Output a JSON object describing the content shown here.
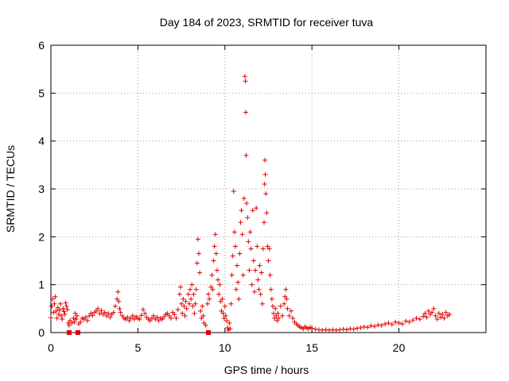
{
  "chart_data": {
    "type": "scatter",
    "title": "Day 184 of 2023, SRMTID for receiver tuva",
    "xlabel": "GPS time / hours",
    "ylabel": "SRMTID / TECUs",
    "xlim": [
      0,
      25
    ],
    "ylim": [
      0,
      6
    ],
    "x_ticks": [
      0,
      5,
      10,
      15,
      20
    ],
    "y_ticks": [
      0,
      1,
      2,
      3,
      4,
      5,
      6
    ],
    "x_tick_labels": [
      "0",
      "5",
      "10",
      "15",
      "20"
    ],
    "y_tick_labels": [
      "0",
      "1",
      "2",
      "3",
      "4",
      "5",
      "6"
    ],
    "grid": true,
    "marker": "+",
    "color": "#e00000",
    "series": [
      {
        "name": "SRMTID",
        "points": [
          [
            0.0,
            0.31
          ],
          [
            0.05,
            0.55
          ],
          [
            0.1,
            0.7
          ],
          [
            0.15,
            0.42
          ],
          [
            0.2,
            0.6
          ],
          [
            0.25,
            0.75
          ],
          [
            0.3,
            0.45
          ],
          [
            0.35,
            0.3
          ],
          [
            0.4,
            0.52
          ],
          [
            0.45,
            0.38
          ],
          [
            0.5,
            0.47
          ],
          [
            0.55,
            0.6
          ],
          [
            0.6,
            0.35
          ],
          [
            0.65,
            0.28
          ],
          [
            0.7,
            0.5
          ],
          [
            0.75,
            0.44
          ],
          [
            0.8,
            0.38
          ],
          [
            0.85,
            0.62
          ],
          [
            0.9,
            0.55
          ],
          [
            0.95,
            0.48
          ],
          [
            1.0,
            0.2
          ],
          [
            1.05,
            0.15
          ],
          [
            1.1,
            0.25
          ],
          [
            1.2,
            0.2
          ],
          [
            1.3,
            0.3
          ],
          [
            1.35,
            0.22
          ],
          [
            1.4,
            0.4
          ],
          [
            1.45,
            0.28
          ],
          [
            1.5,
            0.35
          ],
          [
            1.6,
            0.18
          ],
          [
            1.7,
            0.22
          ],
          [
            1.8,
            0.3
          ],
          [
            1.9,
            0.28
          ],
          [
            2.0,
            0.32
          ],
          [
            2.1,
            0.25
          ],
          [
            2.2,
            0.35
          ],
          [
            2.3,
            0.4
          ],
          [
            2.4,
            0.36
          ],
          [
            2.5,
            0.42
          ],
          [
            2.6,
            0.45
          ],
          [
            2.7,
            0.5
          ],
          [
            2.8,
            0.4
          ],
          [
            2.9,
            0.46
          ],
          [
            3.0,
            0.38
          ],
          [
            3.1,
            0.42
          ],
          [
            3.2,
            0.35
          ],
          [
            3.3,
            0.4
          ],
          [
            3.4,
            0.32
          ],
          [
            3.5,
            0.38
          ],
          [
            3.6,
            0.42
          ],
          [
            3.7,
            0.55
          ],
          [
            3.8,
            0.7
          ],
          [
            3.85,
            0.85
          ],
          [
            3.9,
            0.65
          ],
          [
            3.95,
            0.5
          ],
          [
            4.0,
            0.42
          ],
          [
            4.1,
            0.35
          ],
          [
            4.2,
            0.3
          ],
          [
            4.3,
            0.28
          ],
          [
            4.4,
            0.32
          ],
          [
            4.5,
            0.25
          ],
          [
            4.6,
            0.3
          ],
          [
            4.7,
            0.35
          ],
          [
            4.8,
            0.28
          ],
          [
            4.9,
            0.33
          ],
          [
            5.0,
            0.3
          ],
          [
            5.1,
            0.28
          ],
          [
            5.2,
            0.36
          ],
          [
            5.3,
            0.48
          ],
          [
            5.4,
            0.4
          ],
          [
            5.5,
            0.32
          ],
          [
            5.6,
            0.28
          ],
          [
            5.7,
            0.25
          ],
          [
            5.8,
            0.3
          ],
          [
            5.9,
            0.35
          ],
          [
            6.0,
            0.28
          ],
          [
            6.1,
            0.32
          ],
          [
            6.2,
            0.25
          ],
          [
            6.3,
            0.3
          ],
          [
            6.4,
            0.28
          ],
          [
            6.5,
            0.33
          ],
          [
            6.6,
            0.38
          ],
          [
            6.7,
            0.4
          ],
          [
            6.8,
            0.35
          ],
          [
            6.9,
            0.3
          ],
          [
            7.0,
            0.42
          ],
          [
            7.1,
            0.38
          ],
          [
            7.2,
            0.3
          ],
          [
            7.3,
            0.48
          ],
          [
            7.4,
            0.8
          ],
          [
            7.45,
            0.95
          ],
          [
            7.5,
            0.6
          ],
          [
            7.55,
            0.4
          ],
          [
            7.6,
            0.7
          ],
          [
            7.65,
            0.55
          ],
          [
            7.7,
            0.35
          ],
          [
            7.75,
            0.65
          ],
          [
            7.8,
            0.5
          ],
          [
            7.9,
            0.8
          ],
          [
            7.95,
            0.6
          ],
          [
            8.0,
            0.9
          ],
          [
            8.05,
            0.7
          ],
          [
            8.1,
            1.0
          ],
          [
            8.15,
            0.55
          ],
          [
            8.2,
            0.8
          ],
          [
            8.25,
            0.4
          ],
          [
            8.3,
            0.6
          ],
          [
            8.35,
            0.9
          ],
          [
            8.4,
            1.45
          ],
          [
            8.45,
            1.95
          ],
          [
            8.5,
            1.65
          ],
          [
            8.55,
            1.25
          ],
          [
            8.6,
            0.45
          ],
          [
            8.65,
            0.3
          ],
          [
            8.7,
            0.55
          ],
          [
            8.75,
            0.35
          ],
          [
            8.8,
            0.2
          ],
          [
            8.9,
            0.15
          ],
          [
            9.0,
            0.6
          ],
          [
            9.05,
            0.8
          ],
          [
            9.1,
            0.7
          ],
          [
            9.2,
            0.95
          ],
          [
            9.25,
            1.2
          ],
          [
            9.3,
            0.9
          ],
          [
            9.35,
            1.5
          ],
          [
            9.4,
            1.8
          ],
          [
            9.45,
            2.05
          ],
          [
            9.5,
            1.65
          ],
          [
            9.55,
            1.3
          ],
          [
            9.6,
            1.1
          ],
          [
            9.65,
            0.8
          ],
          [
            9.7,
            1.0
          ],
          [
            9.75,
            0.65
          ],
          [
            9.8,
            0.45
          ],
          [
            9.85,
            0.7
          ],
          [
            9.9,
            0.4
          ],
          [
            9.95,
            0.3
          ],
          [
            10.0,
            0.55
          ],
          [
            10.05,
            0.35
          ],
          [
            10.1,
            0.25
          ],
          [
            10.15,
            0.1
          ],
          [
            10.2,
            0.05
          ],
          [
            10.25,
            0.2
          ],
          [
            10.3,
            0.08
          ],
          [
            10.35,
            0.6
          ],
          [
            10.4,
            1.2
          ],
          [
            10.45,
            1.6
          ],
          [
            10.5,
            2.95
          ],
          [
            10.55,
            2.1
          ],
          [
            10.6,
            1.8
          ],
          [
            10.65,
            0.9
          ],
          [
            10.7,
            1.4
          ],
          [
            10.75,
            1.05
          ],
          [
            10.8,
            0.7
          ],
          [
            10.85,
            1.65
          ],
          [
            10.9,
            2.3
          ],
          [
            10.95,
            2.55
          ],
          [
            11.0,
            2.05
          ],
          [
            11.05,
            1.2
          ],
          [
            11.1,
            2.8
          ],
          [
            11.15,
            5.35
          ],
          [
            11.18,
            5.25
          ],
          [
            11.2,
            4.6
          ],
          [
            11.22,
            3.7
          ],
          [
            11.25,
            2.7
          ],
          [
            11.3,
            2.4
          ],
          [
            11.35,
            1.9
          ],
          [
            11.4,
            1.3
          ],
          [
            11.45,
            2.1
          ],
          [
            11.5,
            1.75
          ],
          [
            11.55,
            1.0
          ],
          [
            11.6,
            2.55
          ],
          [
            11.65,
            1.5
          ],
          [
            11.7,
            0.85
          ],
          [
            11.75,
            1.3
          ],
          [
            11.8,
            2.6
          ],
          [
            11.85,
            1.8
          ],
          [
            11.9,
            1.1
          ],
          [
            11.95,
            0.9
          ],
          [
            12.0,
            1.4
          ],
          [
            12.05,
            0.8
          ],
          [
            12.1,
            1.25
          ],
          [
            12.15,
            0.6
          ],
          [
            12.2,
            1.75
          ],
          [
            12.25,
            2.3
          ],
          [
            12.28,
            3.1
          ],
          [
            12.3,
            3.6
          ],
          [
            12.32,
            3.3
          ],
          [
            12.35,
            2.9
          ],
          [
            12.4,
            2.5
          ],
          [
            12.45,
            1.8
          ],
          [
            12.5,
            1.5
          ],
          [
            12.55,
            1.75
          ],
          [
            12.6,
            1.2
          ],
          [
            12.65,
            0.9
          ],
          [
            12.7,
            0.7
          ],
          [
            12.75,
            0.55
          ],
          [
            12.8,
            0.4
          ],
          [
            12.85,
            0.3
          ],
          [
            12.9,
            0.5
          ],
          [
            12.95,
            0.35
          ],
          [
            13.0,
            0.25
          ],
          [
            13.05,
            0.4
          ],
          [
            13.1,
            0.3
          ],
          [
            13.2,
            0.55
          ],
          [
            13.3,
            0.35
          ],
          [
            13.4,
            0.6
          ],
          [
            13.45,
            0.75
          ],
          [
            13.5,
            0.9
          ],
          [
            13.55,
            0.7
          ],
          [
            13.6,
            0.5
          ],
          [
            13.7,
            0.35
          ],
          [
            13.8,
            0.45
          ],
          [
            13.9,
            0.3
          ],
          [
            14.0,
            0.22
          ],
          [
            14.1,
            0.18
          ],
          [
            14.2,
            0.15
          ],
          [
            14.3,
            0.12
          ],
          [
            14.4,
            0.1
          ],
          [
            14.5,
            0.08
          ],
          [
            14.6,
            0.12
          ],
          [
            14.7,
            0.1
          ],
          [
            14.8,
            0.08
          ],
          [
            14.9,
            0.11
          ],
          [
            15.0,
            0.09
          ],
          [
            15.2,
            0.07
          ],
          [
            15.4,
            0.06
          ],
          [
            15.6,
            0.05
          ],
          [
            15.8,
            0.06
          ],
          [
            16.0,
            0.05
          ],
          [
            16.2,
            0.06
          ],
          [
            16.4,
            0.05
          ],
          [
            16.6,
            0.06
          ],
          [
            16.8,
            0.07
          ],
          [
            17.0,
            0.06
          ],
          [
            17.2,
            0.08
          ],
          [
            17.4,
            0.07
          ],
          [
            17.6,
            0.09
          ],
          [
            17.8,
            0.1
          ],
          [
            18.0,
            0.12
          ],
          [
            18.2,
            0.11
          ],
          [
            18.4,
            0.14
          ],
          [
            18.6,
            0.13
          ],
          [
            18.8,
            0.16
          ],
          [
            19.0,
            0.15
          ],
          [
            19.2,
            0.18
          ],
          [
            19.4,
            0.2
          ],
          [
            19.6,
            0.17
          ],
          [
            19.8,
            0.22
          ],
          [
            20.0,
            0.2
          ],
          [
            20.2,
            0.18
          ],
          [
            20.4,
            0.24
          ],
          [
            20.6,
            0.22
          ],
          [
            20.8,
            0.26
          ],
          [
            21.0,
            0.3
          ],
          [
            21.2,
            0.28
          ],
          [
            21.4,
            0.34
          ],
          [
            21.5,
            0.4
          ],
          [
            21.6,
            0.32
          ],
          [
            21.7,
            0.45
          ],
          [
            21.8,
            0.38
          ],
          [
            21.9,
            0.42
          ],
          [
            22.0,
            0.5
          ],
          [
            22.1,
            0.35
          ],
          [
            22.2,
            0.28
          ],
          [
            22.3,
            0.4
          ],
          [
            22.4,
            0.32
          ],
          [
            22.5,
            0.38
          ],
          [
            22.6,
            0.3
          ],
          [
            22.7,
            0.42
          ],
          [
            22.8,
            0.35
          ],
          [
            22.9,
            0.38
          ]
        ]
      }
    ],
    "zero_markers": [
      1.05,
      1.55,
      9.05
    ]
  }
}
